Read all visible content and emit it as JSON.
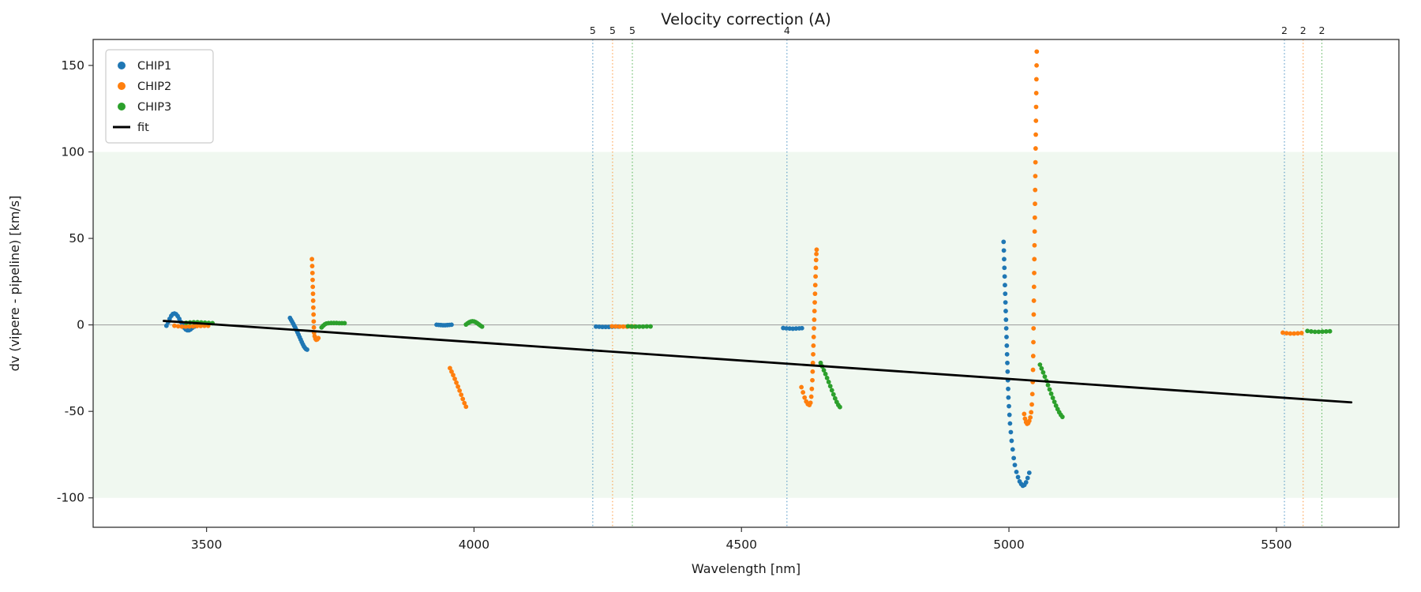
{
  "figure": {
    "title": "Velocity correction (A)",
    "xlabel": "Wavelength [nm]",
    "ylabel": "dv (vipere - pipeline) [km/s]"
  },
  "chart_data": {
    "type": "scatter",
    "title": "Velocity correction (A)",
    "xlabel": "Wavelength [nm]",
    "ylabel": "dv (vipere - pipeline) [km/s]",
    "xlim": [
      3288,
      5729
    ],
    "ylim": [
      -117,
      165
    ],
    "xticks": [
      3500,
      4000,
      4500,
      5000,
      5500
    ],
    "yticks": [
      -100,
      -50,
      0,
      50,
      100,
      150
    ],
    "grid": false,
    "legend_position": "upper left",
    "legend_entries": [
      "CHIP1",
      "CHIP2",
      "CHIP3",
      "fit"
    ],
    "shaded_band": {
      "ymin": -100,
      "ymax": 100,
      "color": "#2ca02c",
      "opacity": 0.07
    },
    "zero_line": {
      "y": 0,
      "color": "#9a9a9a"
    },
    "fit_line": {
      "name": "fit",
      "color": "#000000",
      "x": [
        3420,
        5640
      ],
      "y": [
        2.3,
        -44.8
      ]
    },
    "vlines": [
      {
        "x": 4222,
        "label": "5",
        "color": "#1f77b4"
      },
      {
        "x": 4259,
        "label": "5",
        "color": "#ff7f0e"
      },
      {
        "x": 4296,
        "label": "5",
        "color": "#2ca02c"
      },
      {
        "x": 4585,
        "label": "4",
        "color": "#1f77b4"
      },
      {
        "x": 5515,
        "label": "2",
        "color": "#1f77b4"
      },
      {
        "x": 5550,
        "label": "2",
        "color": "#ff7f0e"
      },
      {
        "x": 5585,
        "label": "2",
        "color": "#2ca02c"
      }
    ],
    "series": [
      {
        "name": "CHIP1",
        "color": "#1f77b4",
        "points": [
          [
            3425,
            -0.5
          ],
          [
            3428,
            1.5
          ],
          [
            3431,
            3.5
          ],
          [
            3434,
            5.2
          ],
          [
            3437,
            6.3
          ],
          [
            3440,
            6.6
          ],
          [
            3443,
            6.2
          ],
          [
            3446,
            5.1
          ],
          [
            3449,
            3.5
          ],
          [
            3452,
            1.7
          ],
          [
            3455,
            0
          ],
          [
            3458,
            -1.6
          ],
          [
            3461,
            -2.6
          ],
          [
            3464,
            -3.1
          ],
          [
            3467,
            -3.1
          ],
          [
            3470,
            -2.6
          ],
          [
            3473,
            -1.8
          ],
          [
            3477,
            -1
          ],
          [
            3481,
            -0.4
          ],
          [
            3485,
            0
          ],
          [
            3489,
            0.3
          ],
          [
            3493,
            0.4
          ],
          [
            3497,
            0.3
          ],
          [
            3501,
            0.2
          ],
          [
            3656,
            4
          ],
          [
            3658,
            2.9
          ],
          [
            3660,
            1.8
          ],
          [
            3662,
            0.7
          ],
          [
            3664,
            -0.5
          ],
          [
            3666,
            -1.7
          ],
          [
            3668,
            -3
          ],
          [
            3670,
            -4.3
          ],
          [
            3672,
            -5.7
          ],
          [
            3674,
            -7.1
          ],
          [
            3676,
            -8.5
          ],
          [
            3678,
            -9.9
          ],
          [
            3680,
            -11.2
          ],
          [
            3682,
            -12.4
          ],
          [
            3684,
            -13.3
          ],
          [
            3686,
            -14
          ],
          [
            3688,
            -14.3
          ],
          [
            3930,
            0.1
          ],
          [
            3934,
            0
          ],
          [
            3938,
            -0.1
          ],
          [
            3942,
            -0.2
          ],
          [
            3946,
            -0.2
          ],
          [
            3950,
            -0.1
          ],
          [
            3954,
            0
          ],
          [
            3958,
            0.1
          ],
          [
            4228,
            -1
          ],
          [
            4234,
            -1.1
          ],
          [
            4240,
            -1.2
          ],
          [
            4246,
            -1.2
          ],
          [
            4252,
            -1.2
          ],
          [
            4258,
            -1.1
          ],
          [
            4264,
            -1
          ],
          [
            4270,
            -1
          ],
          [
            4578,
            -1.8
          ],
          [
            4584,
            -2
          ],
          [
            4590,
            -2.1
          ],
          [
            4596,
            -2.2
          ],
          [
            4602,
            -2.1
          ],
          [
            4608,
            -2
          ],
          [
            4613,
            -1.9
          ],
          [
            4990,
            48
          ],
          [
            4990.5,
            43
          ],
          [
            4991,
            38
          ],
          [
            4991.5,
            33
          ],
          [
            4992,
            28
          ],
          [
            4992.5,
            23
          ],
          [
            4993,
            18
          ],
          [
            4993.5,
            13
          ],
          [
            4994,
            8
          ],
          [
            4994.5,
            3
          ],
          [
            4995,
            -2
          ],
          [
            4995.5,
            -7
          ],
          [
            4996,
            -12
          ],
          [
            4996.5,
            -17
          ],
          [
            4997,
            -22
          ],
          [
            4997.5,
            -27
          ],
          [
            4998,
            -32
          ],
          [
            4998.5,
            -37
          ],
          [
            4999,
            -42
          ],
          [
            5000,
            -47
          ],
          [
            5001,
            -52
          ],
          [
            5002,
            -57
          ],
          [
            5003.5,
            -62
          ],
          [
            5005,
            -67
          ],
          [
            5007,
            -72
          ],
          [
            5009,
            -77
          ],
          [
            5011,
            -81
          ],
          [
            5014,
            -85
          ],
          [
            5017,
            -88
          ],
          [
            5020,
            -90.5
          ],
          [
            5023,
            -92
          ],
          [
            5026,
            -93
          ],
          [
            5029,
            -92.5
          ],
          [
            5032,
            -91
          ],
          [
            5035,
            -88.5
          ],
          [
            5038,
            -85.5
          ]
        ]
      },
      {
        "name": "CHIP2",
        "color": "#ff7f0e",
        "points": [
          [
            3440,
            -0.5
          ],
          [
            3447,
            -0.8
          ],
          [
            3454,
            -1
          ],
          [
            3461,
            -1
          ],
          [
            3468,
            -0.9
          ],
          [
            3475,
            -0.8
          ],
          [
            3482,
            -0.7
          ],
          [
            3489,
            -0.6
          ],
          [
            3496,
            -0.5
          ],
          [
            3503,
            -0.5
          ],
          [
            3697,
            38
          ],
          [
            3697.5,
            34
          ],
          [
            3698,
            30
          ],
          [
            3698.3,
            26
          ],
          [
            3698.6,
            22
          ],
          [
            3699,
            18
          ],
          [
            3699.3,
            14
          ],
          [
            3699.6,
            10
          ],
          [
            3700,
            6
          ],
          [
            3700.3,
            2
          ],
          [
            3700.6,
            -1.5
          ],
          [
            3701,
            -4.5
          ],
          [
            3702,
            -6.5
          ],
          [
            3703.5,
            -8
          ],
          [
            3705,
            -8.6
          ],
          [
            3707,
            -8.4
          ],
          [
            3709,
            -7.6
          ],
          [
            3955,
            -25
          ],
          [
            3958,
            -27
          ],
          [
            3961,
            -29
          ],
          [
            3964,
            -31.2
          ],
          [
            3967,
            -33.4
          ],
          [
            3970,
            -35.7
          ],
          [
            3973,
            -38
          ],
          [
            3976,
            -40.4
          ],
          [
            3979,
            -42.8
          ],
          [
            3982,
            -45.2
          ],
          [
            3985,
            -47.3
          ],
          [
            4258,
            -0.8
          ],
          [
            4265,
            -0.9
          ],
          [
            4272,
            -1
          ],
          [
            4279,
            -1
          ],
          [
            4286,
            -1
          ],
          [
            4293,
            -0.9
          ],
          [
            4300,
            -0.9
          ],
          [
            4612,
            -36
          ],
          [
            4615,
            -39
          ],
          [
            4618,
            -42
          ],
          [
            4621,
            -44.3
          ],
          [
            4624,
            -45.8
          ],
          [
            4627,
            -46.3
          ],
          [
            4629,
            -45
          ],
          [
            4630.5,
            -41.5
          ],
          [
            4631.5,
            -37
          ],
          [
            4632.5,
            -32
          ],
          [
            4633,
            -27
          ],
          [
            4633.5,
            -22
          ],
          [
            4634,
            -17
          ],
          [
            4634.5,
            -12
          ],
          [
            4635,
            -7
          ],
          [
            4635.5,
            -2
          ],
          [
            4636,
            3
          ],
          [
            4636.5,
            8
          ],
          [
            4637,
            13
          ],
          [
            4637.5,
            18
          ],
          [
            4638,
            23
          ],
          [
            4638.5,
            28
          ],
          [
            4639,
            33
          ],
          [
            4639.5,
            37.5
          ],
          [
            4640,
            41
          ],
          [
            4640.5,
            43.5
          ],
          [
            5052,
            158
          ],
          [
            5051.7,
            150
          ],
          [
            5051.4,
            142
          ],
          [
            5051.1,
            134
          ],
          [
            5050.8,
            126
          ],
          [
            5050.5,
            118
          ],
          [
            5050.2,
            110
          ],
          [
            5049.9,
            102
          ],
          [
            5049.6,
            94
          ],
          [
            5049.3,
            86
          ],
          [
            5049,
            78
          ],
          [
            5048.7,
            70
          ],
          [
            5048.4,
            62
          ],
          [
            5048.1,
            54
          ],
          [
            5047.8,
            46
          ],
          [
            5047.5,
            38
          ],
          [
            5047.2,
            30
          ],
          [
            5046.9,
            22
          ],
          [
            5046.6,
            14
          ],
          [
            5046.3,
            6
          ],
          [
            5046,
            -2
          ],
          [
            5045.7,
            -10
          ],
          [
            5045.4,
            -18
          ],
          [
            5045,
            -26
          ],
          [
            5044.5,
            -33
          ],
          [
            5043.8,
            -40
          ],
          [
            5042.8,
            -46
          ],
          [
            5041.5,
            -50.5
          ],
          [
            5040,
            -53.5
          ],
          [
            5038,
            -55.5
          ],
          [
            5036,
            -56.8
          ],
          [
            5034,
            -57.2
          ],
          [
            5032,
            -56.2
          ],
          [
            5030,
            -54.2
          ],
          [
            5028.5,
            -51.5
          ],
          [
            5512,
            -4.5
          ],
          [
            5519,
            -4.8
          ],
          [
            5526,
            -5
          ],
          [
            5533,
            -5
          ],
          [
            5540,
            -4.9
          ],
          [
            5547,
            -4.7
          ]
        ]
      },
      {
        "name": "CHIP3",
        "color": "#2ca02c",
        "points": [
          [
            3462,
            1.2
          ],
          [
            3469,
            1.4
          ],
          [
            3476,
            1.5
          ],
          [
            3483,
            1.5
          ],
          [
            3490,
            1.4
          ],
          [
            3497,
            1.3
          ],
          [
            3504,
            1.1
          ],
          [
            3511,
            1
          ],
          [
            3715,
            -1.5
          ],
          [
            3718,
            -0.5
          ],
          [
            3721,
            0.3
          ],
          [
            3724,
            0.8
          ],
          [
            3728,
            1
          ],
          [
            3733,
            1.1
          ],
          [
            3738,
            1.1
          ],
          [
            3743,
            1.1
          ],
          [
            3748,
            1
          ],
          [
            3753,
            1
          ],
          [
            3758,
            1
          ],
          [
            3985,
            0.2
          ],
          [
            3988,
            0.9
          ],
          [
            3991,
            1.5
          ],
          [
            3994,
            1.9
          ],
          [
            3997,
            2.1
          ],
          [
            4000,
            2
          ],
          [
            4003,
            1.6
          ],
          [
            4006,
            1
          ],
          [
            4009,
            0.3
          ],
          [
            4012,
            -0.4
          ],
          [
            4015,
            -1
          ],
          [
            4288,
            -0.8
          ],
          [
            4295,
            -0.9
          ],
          [
            4302,
            -1
          ],
          [
            4309,
            -1
          ],
          [
            4316,
            -1
          ],
          [
            4323,
            -0.9
          ],
          [
            4330,
            -0.9
          ],
          [
            4648,
            -22
          ],
          [
            4651,
            -24
          ],
          [
            4654,
            -26.2
          ],
          [
            4657,
            -28.4
          ],
          [
            4660,
            -30.7
          ],
          [
            4663,
            -33
          ],
          [
            4666,
            -35.4
          ],
          [
            4669,
            -37.8
          ],
          [
            4672,
            -40.2
          ],
          [
            4675,
            -42.5
          ],
          [
            4678,
            -44.6
          ],
          [
            4681,
            -46.3
          ],
          [
            4684,
            -47.5
          ],
          [
            5058,
            -23
          ],
          [
            5061,
            -25.2
          ],
          [
            5064,
            -27.5
          ],
          [
            5067,
            -29.9
          ],
          [
            5070,
            -32.3
          ],
          [
            5073,
            -34.8
          ],
          [
            5076,
            -37.3
          ],
          [
            5079,
            -39.8
          ],
          [
            5082,
            -42.2
          ],
          [
            5085,
            -44.5
          ],
          [
            5088,
            -46.7
          ],
          [
            5091,
            -48.7
          ],
          [
            5094,
            -50.5
          ],
          [
            5097,
            -52
          ],
          [
            5100,
            -53.2
          ],
          [
            5558,
            -3.5
          ],
          [
            5565,
            -3.8
          ],
          [
            5572,
            -4
          ],
          [
            5579,
            -4
          ],
          [
            5586,
            -3.9
          ],
          [
            5593,
            -3.8
          ],
          [
            5600,
            -3.7
          ]
        ]
      }
    ]
  }
}
